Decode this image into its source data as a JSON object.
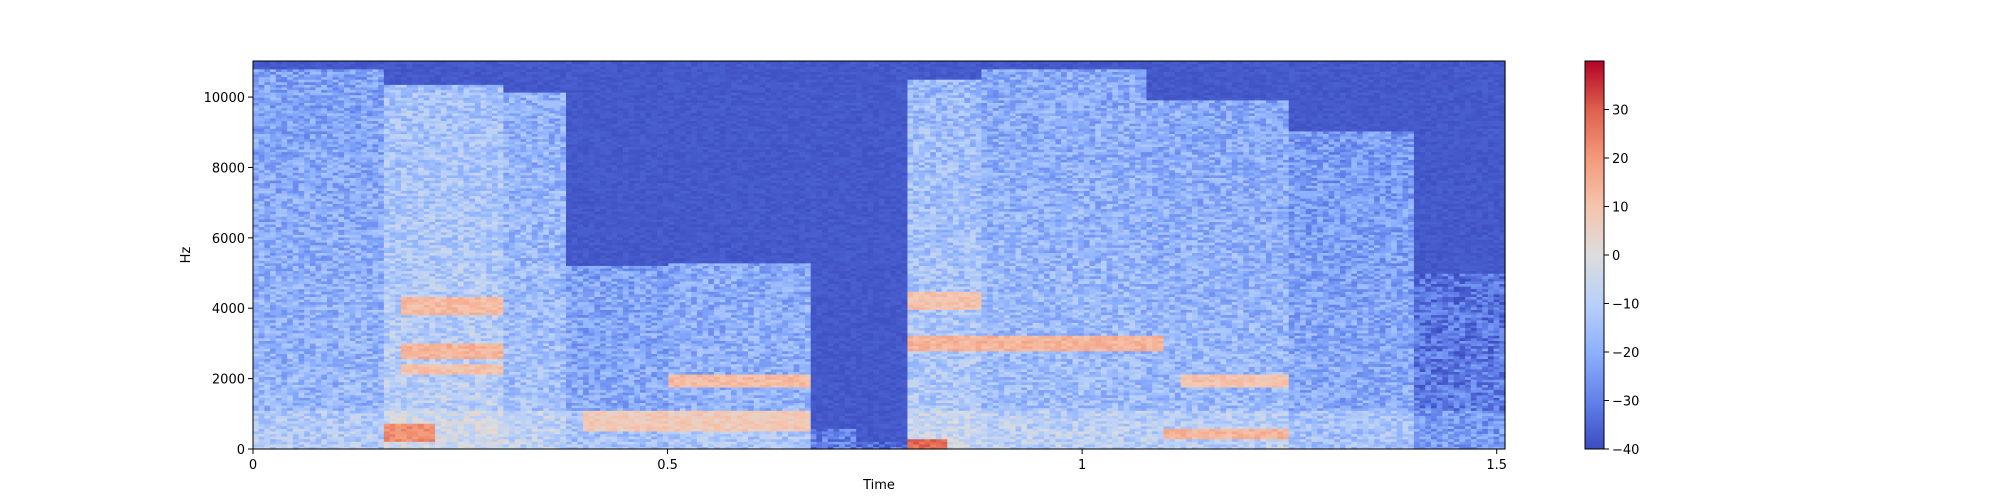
{
  "chart_data": {
    "type": "heatmap",
    "title": "",
    "xlabel": "Time",
    "ylabel": "Hz",
    "xlim": [
      0,
      1.51
    ],
    "ylim": [
      0,
      11025
    ],
    "x_ticks": [
      {
        "value": 0,
        "label": "0"
      },
      {
        "value": 0.5,
        "label": "0.5"
      },
      {
        "value": 1,
        "label": "1"
      },
      {
        "value": 1.5,
        "label": "1.5"
      }
    ],
    "y_ticks": [
      {
        "value": 0,
        "label": "0"
      },
      {
        "value": 2000,
        "label": "2000"
      },
      {
        "value": 4000,
        "label": "4000"
      },
      {
        "value": 6000,
        "label": "6000"
      },
      {
        "value": 8000,
        "label": "8000"
      },
      {
        "value": 10000,
        "label": "10000"
      }
    ],
    "colormap": "coolwarm",
    "colorbar": {
      "range": [
        -40,
        40
      ],
      "ticks": [
        {
          "value": 30,
          "label": "30"
        },
        {
          "value": 20,
          "label": "20"
        },
        {
          "value": 10,
          "label": "10"
        },
        {
          "value": 0,
          "label": "0"
        },
        {
          "value": -10,
          "label": "−10"
        },
        {
          "value": -20,
          "label": "−20"
        },
        {
          "value": -30,
          "label": "−30"
        },
        {
          "value": -40,
          "label": "−40"
        }
      ]
    },
    "time_segments": [
      {
        "t0": 0.0,
        "t1": 0.16,
        "level": -17,
        "ext": 0.98
      },
      {
        "t0": 0.16,
        "t1": 0.3,
        "level": -9,
        "ext": 0.94
      },
      {
        "t0": 0.3,
        "t1": 0.38,
        "level": -14,
        "ext": 0.92
      },
      {
        "t0": 0.38,
        "t1": 0.5,
        "level": -20,
        "ext": 0.47
      },
      {
        "t0": 0.5,
        "t1": 0.67,
        "level": -18,
        "ext": 0.48
      },
      {
        "t0": 0.67,
        "t1": 0.73,
        "level": -36,
        "ext": 0.05
      },
      {
        "t0": 0.73,
        "t1": 0.79,
        "level": -40,
        "ext": 0.02
      },
      {
        "t0": 0.79,
        "t1": 0.88,
        "level": -11,
        "ext": 0.95
      },
      {
        "t0": 0.88,
        "t1": 1.08,
        "level": -15,
        "ext": 0.98
      },
      {
        "t0": 1.08,
        "t1": 1.25,
        "level": -16,
        "ext": 0.9
      },
      {
        "t0": 1.25,
        "t1": 1.4,
        "level": -20,
        "ext": 0.82
      },
      {
        "t0": 1.4,
        "t1": 1.51,
        "level": -30,
        "ext": 0.45
      }
    ],
    "hot_bands": [
      {
        "t0": 0.18,
        "t1": 0.3,
        "f0": 3800,
        "f1": 4300,
        "level": 12
      },
      {
        "t0": 0.18,
        "t1": 0.3,
        "f0": 2600,
        "f1": 3000,
        "level": 14
      },
      {
        "t0": 0.18,
        "t1": 0.3,
        "f0": 2100,
        "f1": 2400,
        "level": 10
      },
      {
        "t0": 0.16,
        "t1": 0.22,
        "f0": 200,
        "f1": 700,
        "level": 22
      },
      {
        "t0": 0.5,
        "t1": 0.67,
        "f0": 1800,
        "f1": 2100,
        "level": 12
      },
      {
        "t0": 0.4,
        "t1": 0.67,
        "f0": 500,
        "f1": 1100,
        "level": 8
      },
      {
        "t0": 0.79,
        "t1": 1.1,
        "f0": 2800,
        "f1": 3200,
        "level": 14
      },
      {
        "t0": 0.79,
        "t1": 0.88,
        "f0": 4000,
        "f1": 4500,
        "level": 10
      },
      {
        "t0": 0.79,
        "t1": 0.84,
        "f0": 0,
        "f1": 300,
        "level": 28
      },
      {
        "t0": 1.12,
        "t1": 1.25,
        "f0": 1800,
        "f1": 2100,
        "level": 10
      },
      {
        "t0": 1.1,
        "t1": 1.25,
        "f0": 300,
        "f1": 600,
        "level": 14
      }
    ]
  }
}
